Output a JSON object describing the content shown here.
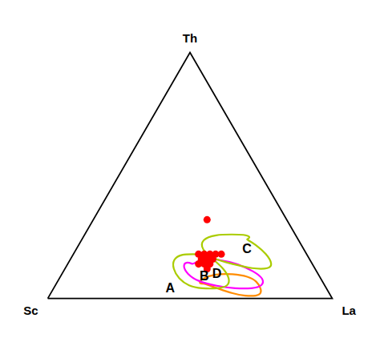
{
  "chart_data": {
    "type": "ternary",
    "corner_labels": [
      "Sc",
      "Th",
      "La"
    ],
    "regions": [
      {
        "label": "A",
        "color": "#FF8C00",
        "label_pos": [
          0.55,
          0.04,
          0.41
        ],
        "points": [
          [
            0.42,
            0.06,
            0.52
          ],
          [
            0.38,
            0.04,
            0.58
          ],
          [
            0.34,
            0.02,
            0.64
          ],
          [
            0.3,
            0.01,
            0.69
          ],
          [
            0.26,
            0.01,
            0.73
          ],
          [
            0.24,
            0.02,
            0.74
          ],
          [
            0.23,
            0.04,
            0.73
          ],
          [
            0.23,
            0.07,
            0.7
          ],
          [
            0.25,
            0.09,
            0.66
          ],
          [
            0.3,
            0.1,
            0.6
          ],
          [
            0.36,
            0.1,
            0.54
          ],
          [
            0.42,
            0.08,
            0.5
          ],
          [
            0.44,
            0.06,
            0.5
          ],
          [
            0.42,
            0.06,
            0.52
          ]
        ]
      },
      {
        "label": "B",
        "color": "#FF00FF",
        "label_pos": [
          0.38,
          0.09,
          0.53
        ],
        "points": [
          [
            0.42,
            0.14,
            0.44
          ],
          [
            0.38,
            0.16,
            0.46
          ],
          [
            0.32,
            0.16,
            0.52
          ],
          [
            0.26,
            0.14,
            0.6
          ],
          [
            0.22,
            0.11,
            0.67
          ],
          [
            0.2,
            0.08,
            0.72
          ],
          [
            0.22,
            0.05,
            0.73
          ],
          [
            0.26,
            0.04,
            0.7
          ],
          [
            0.32,
            0.04,
            0.64
          ],
          [
            0.38,
            0.05,
            0.57
          ],
          [
            0.44,
            0.07,
            0.49
          ],
          [
            0.46,
            0.1,
            0.44
          ],
          [
            0.46,
            0.13,
            0.41
          ],
          [
            0.44,
            0.15,
            0.41
          ],
          [
            0.42,
            0.14,
            0.44
          ]
        ]
      },
      {
        "label": "C",
        "color": "#AACC00",
        "label_pos": [
          0.2,
          0.2,
          0.6
        ],
        "points": [
          [
            0.18,
            0.24,
            0.58
          ],
          [
            0.16,
            0.22,
            0.62
          ],
          [
            0.14,
            0.18,
            0.68
          ],
          [
            0.14,
            0.14,
            0.72
          ],
          [
            0.16,
            0.12,
            0.72
          ],
          [
            0.22,
            0.12,
            0.66
          ],
          [
            0.28,
            0.14,
            0.58
          ],
          [
            0.34,
            0.16,
            0.5
          ],
          [
            0.36,
            0.2,
            0.44
          ],
          [
            0.34,
            0.24,
            0.42
          ],
          [
            0.28,
            0.26,
            0.46
          ],
          [
            0.22,
            0.26,
            0.52
          ],
          [
            0.18,
            0.26,
            0.56
          ],
          [
            0.16,
            0.25,
            0.59
          ],
          [
            0.18,
            0.24,
            0.58
          ]
        ]
      },
      {
        "label": "D",
        "color": "#AACC00",
        "label_pos": [
          0.38,
          0.1,
          0.52
        ],
        "points": [
          [
            0.34,
            0.16,
            0.5
          ],
          [
            0.32,
            0.12,
            0.56
          ],
          [
            0.32,
            0.08,
            0.6
          ],
          [
            0.34,
            0.05,
            0.61
          ],
          [
            0.38,
            0.04,
            0.58
          ],
          [
            0.44,
            0.04,
            0.52
          ],
          [
            0.48,
            0.05,
            0.47
          ],
          [
            0.5,
            0.08,
            0.42
          ],
          [
            0.5,
            0.12,
            0.38
          ],
          [
            0.48,
            0.16,
            0.36
          ],
          [
            0.44,
            0.18,
            0.38
          ],
          [
            0.4,
            0.18,
            0.42
          ],
          [
            0.36,
            0.18,
            0.46
          ],
          [
            0.34,
            0.16,
            0.5
          ]
        ]
      }
    ],
    "points": [
      [
        0.28,
        0.32,
        0.4
      ],
      [
        0.3,
        0.18,
        0.52
      ],
      [
        0.32,
        0.18,
        0.5
      ],
      [
        0.34,
        0.18,
        0.48
      ],
      [
        0.34,
        0.16,
        0.5
      ],
      [
        0.36,
        0.18,
        0.46
      ],
      [
        0.36,
        0.17,
        0.47
      ],
      [
        0.36,
        0.16,
        0.48
      ],
      [
        0.38,
        0.18,
        0.44
      ],
      [
        0.38,
        0.16,
        0.46
      ],
      [
        0.36,
        0.14,
        0.5
      ],
      [
        0.38,
        0.14,
        0.48
      ],
      [
        0.4,
        0.14,
        0.46
      ],
      [
        0.38,
        0.12,
        0.5
      ]
    ],
    "color": "#FF0000",
    "grid": false,
    "tick_labels": false
  }
}
